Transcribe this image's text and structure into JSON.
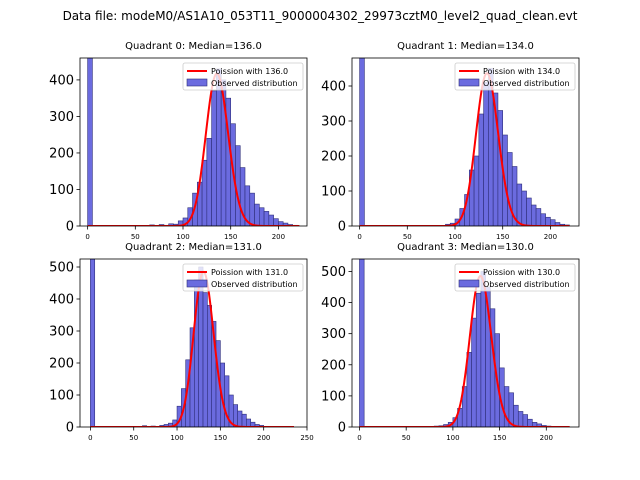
{
  "figure": {
    "suptitle": "Data file: modeM0/AS1A10_053T11_9000004302_29973cztM0_level2_quad_clean.evt"
  },
  "chart_data": [
    {
      "type": "bar",
      "title": "Quadrant 0: Median=136.0",
      "legend": [
        "Poission with 136.0",
        "Observed distribution"
      ],
      "legend_position": "upper right",
      "median": 136.0,
      "xlim": [
        -8,
        230
      ],
      "ylim": [
        0,
        460
      ],
      "xticks": [
        0,
        50,
        100,
        150,
        200
      ],
      "yticks": [
        0,
        100,
        200,
        300,
        400
      ],
      "bin_width": 5,
      "colors": {
        "bars": "#6b6bdf",
        "edge": "#2e2e7a",
        "curve": "#ff0000"
      },
      "bins": [
        {
          "x": 0,
          "y": 460
        },
        {
          "x": 65,
          "y": 3
        },
        {
          "x": 75,
          "y": 4
        },
        {
          "x": 80,
          "y": 2
        },
        {
          "x": 85,
          "y": 6
        },
        {
          "x": 90,
          "y": 5
        },
        {
          "x": 95,
          "y": 14
        },
        {
          "x": 100,
          "y": 22
        },
        {
          "x": 105,
          "y": 50
        },
        {
          "x": 110,
          "y": 90
        },
        {
          "x": 115,
          "y": 120
        },
        {
          "x": 120,
          "y": 180
        },
        {
          "x": 125,
          "y": 240
        },
        {
          "x": 130,
          "y": 370
        },
        {
          "x": 135,
          "y": 430
        },
        {
          "x": 140,
          "y": 400
        },
        {
          "x": 145,
          "y": 350
        },
        {
          "x": 150,
          "y": 280
        },
        {
          "x": 155,
          "y": 220
        },
        {
          "x": 160,
          "y": 160
        },
        {
          "x": 165,
          "y": 110
        },
        {
          "x": 170,
          "y": 90
        },
        {
          "x": 175,
          "y": 60
        },
        {
          "x": 180,
          "y": 50
        },
        {
          "x": 185,
          "y": 40
        },
        {
          "x": 190,
          "y": 30
        },
        {
          "x": 195,
          "y": 20
        },
        {
          "x": 200,
          "y": 12
        },
        {
          "x": 205,
          "y": 8
        },
        {
          "x": 210,
          "y": 4
        },
        {
          "x": 215,
          "y": 2
        }
      ],
      "curve_xmax": 222
    },
    {
      "type": "bar",
      "title": "Quadrant 1: Median=134.0",
      "legend": [
        "Poission with 134.0",
        "Observed distribution"
      ],
      "legend_position": "upper right",
      "median": 134.0,
      "xlim": [
        -8,
        230
      ],
      "ylim": [
        0,
        480
      ],
      "xticks": [
        0,
        50,
        100,
        150,
        200
      ],
      "yticks": [
        0,
        100,
        200,
        300,
        400
      ],
      "bin_width": 5,
      "colors": {
        "bars": "#6b6bdf",
        "edge": "#2e2e7a",
        "curve": "#ff0000"
      },
      "bins": [
        {
          "x": 0,
          "y": 480
        },
        {
          "x": 80,
          "y": 2
        },
        {
          "x": 90,
          "y": 5
        },
        {
          "x": 95,
          "y": 8
        },
        {
          "x": 100,
          "y": 20
        },
        {
          "x": 105,
          "y": 50
        },
        {
          "x": 110,
          "y": 90
        },
        {
          "x": 115,
          "y": 160
        },
        {
          "x": 120,
          "y": 200
        },
        {
          "x": 125,
          "y": 320
        },
        {
          "x": 130,
          "y": 410
        },
        {
          "x": 135,
          "y": 450
        },
        {
          "x": 140,
          "y": 380
        },
        {
          "x": 145,
          "y": 330
        },
        {
          "x": 150,
          "y": 260
        },
        {
          "x": 155,
          "y": 210
        },
        {
          "x": 160,
          "y": 170
        },
        {
          "x": 165,
          "y": 120
        },
        {
          "x": 170,
          "y": 100
        },
        {
          "x": 175,
          "y": 80
        },
        {
          "x": 180,
          "y": 60
        },
        {
          "x": 185,
          "y": 50
        },
        {
          "x": 190,
          "y": 35
        },
        {
          "x": 195,
          "y": 25
        },
        {
          "x": 200,
          "y": 18
        },
        {
          "x": 205,
          "y": 10
        },
        {
          "x": 210,
          "y": 5
        },
        {
          "x": 215,
          "y": 3
        }
      ],
      "curve_xmax": 220
    },
    {
      "type": "bar",
      "title": "Quadrant 2: Median=131.0",
      "legend": [
        "Poission with 131.0",
        "Observed distribution"
      ],
      "legend_position": "upper right",
      "median": 131.0,
      "xlim": [
        -12,
        250
      ],
      "ylim": [
        0,
        525
      ],
      "xticks": [
        0,
        50,
        100,
        150,
        200,
        250
      ],
      "yticks": [
        0,
        100,
        200,
        300,
        400,
        500
      ],
      "bin_width": 5,
      "colors": {
        "bars": "#6b6bdf",
        "edge": "#2e2e7a",
        "curve": "#ff0000"
      },
      "bins": [
        {
          "x": 0,
          "y": 525
        },
        {
          "x": 60,
          "y": 4
        },
        {
          "x": 70,
          "y": 3
        },
        {
          "x": 80,
          "y": 5
        },
        {
          "x": 85,
          "y": 8
        },
        {
          "x": 90,
          "y": 12
        },
        {
          "x": 95,
          "y": 22
        },
        {
          "x": 100,
          "y": 65
        },
        {
          "x": 105,
          "y": 120
        },
        {
          "x": 110,
          "y": 210
        },
        {
          "x": 115,
          "y": 310
        },
        {
          "x": 120,
          "y": 460
        },
        {
          "x": 125,
          "y": 500
        },
        {
          "x": 130,
          "y": 420
        },
        {
          "x": 135,
          "y": 380
        },
        {
          "x": 140,
          "y": 330
        },
        {
          "x": 145,
          "y": 270
        },
        {
          "x": 150,
          "y": 200
        },
        {
          "x": 155,
          "y": 160
        },
        {
          "x": 160,
          "y": 100
        },
        {
          "x": 165,
          "y": 70
        },
        {
          "x": 170,
          "y": 50
        },
        {
          "x": 175,
          "y": 40
        },
        {
          "x": 180,
          "y": 25
        },
        {
          "x": 185,
          "y": 15
        },
        {
          "x": 190,
          "y": 8
        },
        {
          "x": 195,
          "y": 5
        },
        {
          "x": 200,
          "y": 2
        }
      ],
      "curve_xmax": 235
    },
    {
      "type": "bar",
      "title": "Quadrant 3: Median=130.0",
      "legend": [
        "Poission with 130.0",
        "Observed distribution"
      ],
      "legend_position": "upper right",
      "median": 130.0,
      "xlim": [
        -8,
        235
      ],
      "ylim": [
        0,
        540
      ],
      "xticks": [
        0,
        50,
        100,
        150,
        200
      ],
      "yticks": [
        0,
        100,
        200,
        300,
        400,
        500
      ],
      "bin_width": 5,
      "colors": {
        "bars": "#6b6bdf",
        "edge": "#2e2e7a",
        "curve": "#ff0000"
      },
      "bins": [
        {
          "x": 0,
          "y": 540
        },
        {
          "x": 65,
          "y": 2
        },
        {
          "x": 80,
          "y": 3
        },
        {
          "x": 85,
          "y": 4
        },
        {
          "x": 90,
          "y": 8
        },
        {
          "x": 95,
          "y": 15
        },
        {
          "x": 100,
          "y": 30
        },
        {
          "x": 105,
          "y": 60
        },
        {
          "x": 110,
          "y": 130
        },
        {
          "x": 115,
          "y": 240
        },
        {
          "x": 120,
          "y": 350
        },
        {
          "x": 125,
          "y": 430
        },
        {
          "x": 130,
          "y": 500
        },
        {
          "x": 135,
          "y": 450
        },
        {
          "x": 140,
          "y": 380
        },
        {
          "x": 145,
          "y": 300
        },
        {
          "x": 150,
          "y": 190
        },
        {
          "x": 155,
          "y": 130
        },
        {
          "x": 160,
          "y": 110
        },
        {
          "x": 165,
          "y": 70
        },
        {
          "x": 170,
          "y": 50
        },
        {
          "x": 175,
          "y": 40
        },
        {
          "x": 180,
          "y": 25
        },
        {
          "x": 185,
          "y": 15
        },
        {
          "x": 190,
          "y": 10
        },
        {
          "x": 195,
          "y": 5
        },
        {
          "x": 200,
          "y": 3
        },
        {
          "x": 205,
          "y": 2
        }
      ],
      "curve_xmax": 225
    }
  ]
}
